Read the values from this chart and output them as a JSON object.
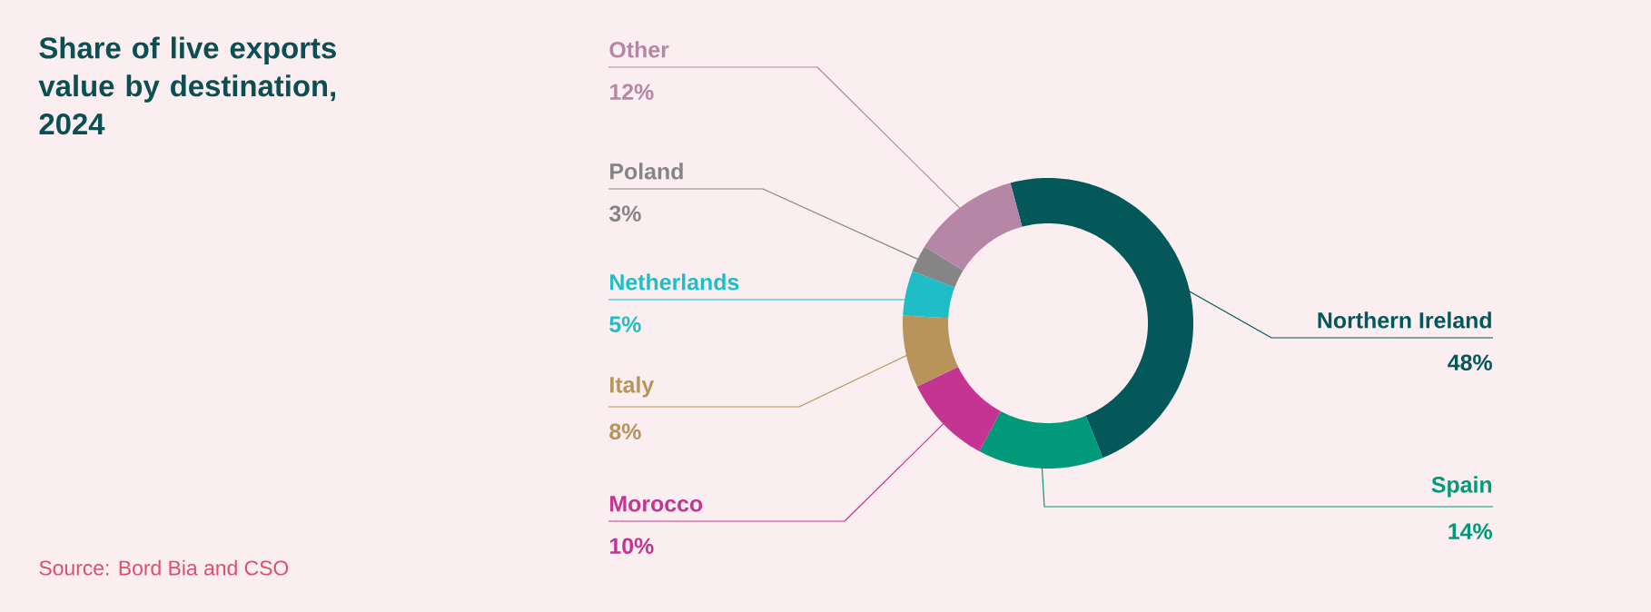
{
  "chart_data": {
    "type": "donut",
    "title": "Share of live exports value by destination, 2024",
    "categories": [
      "Northern Ireland",
      "Spain",
      "Morocco",
      "Italy",
      "Netherlands",
      "Poland",
      "Other"
    ],
    "values": [
      48,
      14,
      10,
      8,
      5,
      3,
      12
    ],
    "value_labels": [
      "48%",
      "14%",
      "10%",
      "8%",
      "5%",
      "3%",
      "12%"
    ],
    "colors": [
      "#04585a",
      "#009a7a",
      "#c43593",
      "#b8945a",
      "#1fbec6",
      "#858585",
      "#b586a6"
    ],
    "annotations": [
      "Source: Bord Bia and CSO"
    ]
  }
}
